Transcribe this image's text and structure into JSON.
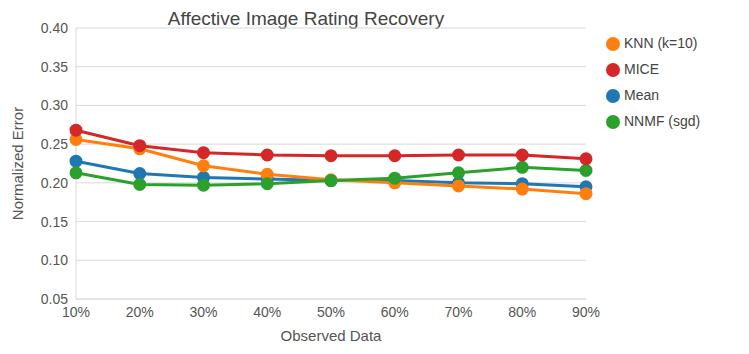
{
  "chart_data": {
    "type": "line",
    "title": "Affective Image Rating Recovery",
    "x_label": "Observed Data",
    "y_label": "Normalized Error",
    "categories": [
      "10%",
      "20%",
      "30%",
      "40%",
      "50%",
      "60%",
      "70%",
      "80%",
      "90%"
    ],
    "series": [
      {
        "name": "Mean",
        "color": "#1f77b4",
        "values": [
          0.228,
          0.212,
          0.207,
          0.205,
          0.203,
          0.203,
          0.2,
          0.199,
          0.195
        ]
      },
      {
        "name": "KNN (k=10)",
        "color": "#ff7f0e",
        "values": [
          0.256,
          0.244,
          0.222,
          0.211,
          0.204,
          0.2,
          0.196,
          0.192,
          0.186
        ]
      },
      {
        "name": "NNMF (sgd)",
        "color": "#2ca02c",
        "values": [
          0.213,
          0.198,
          0.197,
          0.199,
          0.203,
          0.206,
          0.213,
          0.22,
          0.216
        ]
      },
      {
        "name": "MICE",
        "color": "#d62728",
        "values": [
          0.268,
          0.248,
          0.239,
          0.236,
          0.235,
          0.235,
          0.236,
          0.236,
          0.231
        ]
      }
    ],
    "ylim": [
      0.05,
      0.4
    ],
    "yticks": [
      0.05,
      {
        "value": 0.1,
        "label": "0.10"
      },
      0.15,
      {
        "value": 0.2,
        "label": "0.20"
      },
      0.25,
      {
        "value": 0.3,
        "label": "0.30"
      },
      0.35,
      {
        "value": 0.4,
        "label": "0.40"
      }
    ],
    "grid": true,
    "legend": "right",
    "marker": "circle"
  }
}
